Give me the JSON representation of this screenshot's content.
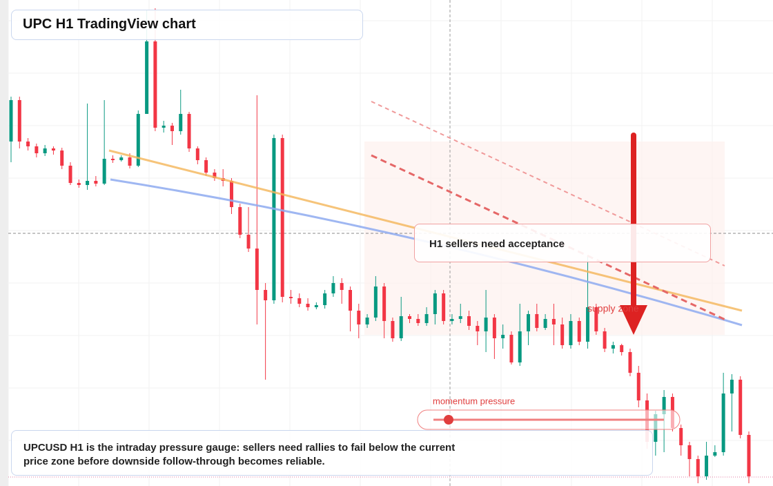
{
  "chart_data": {
    "type": "candlestick",
    "title": "UPC H1 TradingView chart",
    "up_color": "#089981",
    "down_color": "#f23645",
    "ylim": [
      -4,
      700
    ],
    "annotations": {
      "box": "H1 sellers need acceptance",
      "zone": "supply zone",
      "gauge": "momentum pressure",
      "caption": "UPCUSD H1 is the intraday pressure gauge: sellers need rallies to fail below the current price zone before downside follow-through becomes reliable."
    },
    "ohlc": [
      [
        495,
        560,
        465,
        555
      ],
      [
        555,
        560,
        485,
        495
      ],
      [
        495,
        500,
        482,
        488
      ],
      [
        488,
        492,
        472,
        478
      ],
      [
        478,
        490,
        474,
        485
      ],
      [
        485,
        488,
        476,
        482
      ],
      [
        482,
        486,
        455,
        460
      ],
      [
        460,
        465,
        432,
        435
      ],
      [
        435,
        440,
        428,
        432
      ],
      [
        432,
        550,
        425,
        438
      ],
      [
        438,
        445,
        430,
        434
      ],
      [
        434,
        555,
        432,
        470
      ],
      [
        470,
        475,
        464,
        468
      ],
      [
        468,
        475,
        466,
        472
      ],
      [
        472,
        478,
        456,
        460
      ],
      [
        460,
        540,
        458,
        535
      ],
      [
        535,
        685,
        542,
        640
      ],
      [
        640,
        688,
        510,
        515
      ],
      [
        515,
        525,
        508,
        518
      ],
      [
        518,
        522,
        490,
        510
      ],
      [
        510,
        570,
        505,
        535
      ],
      [
        535,
        538,
        480,
        485
      ],
      [
        485,
        488,
        462,
        468
      ],
      [
        468,
        472,
        445,
        450
      ],
      [
        450,
        455,
        438,
        442
      ],
      [
        442,
        455,
        430,
        438
      ],
      [
        438,
        442,
        390,
        400
      ],
      [
        400,
        405,
        355,
        360
      ],
      [
        360,
        400,
        335,
        340
      ],
      [
        340,
        562,
        230,
        280
      ],
      [
        280,
        290,
        150,
        265
      ],
      [
        265,
        505,
        260,
        500
      ],
      [
        500,
        505,
        262,
        270
      ],
      [
        270,
        280,
        260,
        268
      ],
      [
        268,
        275,
        255,
        260
      ],
      [
        260,
        268,
        250,
        255
      ],
      [
        255,
        262,
        252,
        258
      ],
      [
        258,
        280,
        253,
        275
      ],
      [
        275,
        300,
        270,
        290
      ],
      [
        290,
        297,
        260,
        280
      ],
      [
        280,
        285,
        220,
        250
      ],
      [
        250,
        260,
        210,
        230
      ],
      [
        230,
        245,
        225,
        240
      ],
      [
        240,
        300,
        235,
        285
      ],
      [
        285,
        290,
        210,
        235
      ],
      [
        235,
        240,
        205,
        210
      ],
      [
        210,
        270,
        206,
        242
      ],
      [
        242,
        245,
        232,
        238
      ],
      [
        238,
        245,
        228,
        232
      ],
      [
        232,
        255,
        228,
        245
      ],
      [
        245,
        280,
        230,
        275
      ],
      [
        275,
        280,
        230,
        235
      ],
      [
        235,
        245,
        230,
        238
      ],
      [
        238,
        260,
        232,
        242
      ],
      [
        242,
        250,
        222,
        228
      ],
      [
        228,
        235,
        200,
        220
      ],
      [
        220,
        280,
        190,
        240
      ],
      [
        240,
        245,
        180,
        210
      ],
      [
        210,
        230,
        195,
        215
      ],
      [
        215,
        220,
        172,
        175
      ],
      [
        175,
        260,
        170,
        220
      ],
      [
        220,
        250,
        200,
        245
      ],
      [
        245,
        260,
        220,
        225
      ],
      [
        225,
        245,
        222,
        238
      ],
      [
        238,
        260,
        200,
        230
      ],
      [
        230,
        240,
        195,
        200
      ],
      [
        200,
        245,
        195,
        235
      ],
      [
        235,
        240,
        200,
        205
      ],
      [
        205,
        330,
        195,
        255
      ],
      [
        255,
        260,
        215,
        220
      ],
      [
        220,
        225,
        190,
        195
      ],
      [
        195,
        205,
        188,
        200
      ],
      [
        200,
        202,
        185,
        190
      ],
      [
        190,
        195,
        155,
        160
      ],
      [
        160,
        170,
        110,
        120
      ],
      [
        120,
        130,
        50,
        60
      ],
      [
        60,
        105,
        40,
        100
      ],
      [
        100,
        135,
        45,
        125
      ],
      [
        125,
        130,
        75,
        80
      ],
      [
        80,
        85,
        40,
        55
      ],
      [
        55,
        60,
        10,
        35
      ],
      [
        35,
        40,
        0,
        10
      ],
      [
        10,
        60,
        5,
        40
      ],
      [
        40,
        55,
        38,
        45
      ],
      [
        45,
        160,
        40,
        130
      ],
      [
        130,
        158,
        75,
        150
      ],
      [
        150,
        155,
        65,
        70
      ],
      [
        70,
        75,
        0,
        10
      ]
    ]
  }
}
